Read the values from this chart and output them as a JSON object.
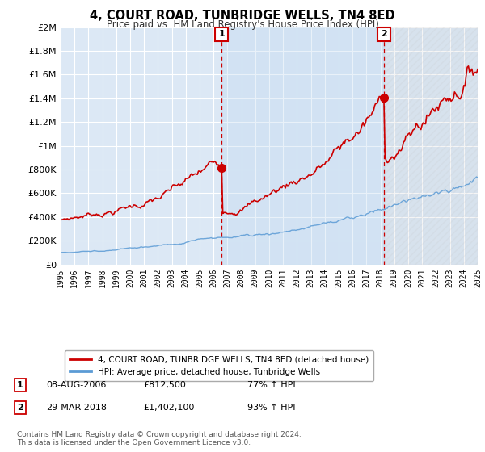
{
  "title": "4, COURT ROAD, TUNBRIDGE WELLS, TN4 8ED",
  "subtitle": "Price paid vs. HM Land Registry's House Price Index (HPI)",
  "legend_line1": "4, COURT ROAD, TUNBRIDGE WELLS, TN4 8ED (detached house)",
  "legend_line2": "HPI: Average price, detached house, Tunbridge Wells",
  "annotation1_label": "1",
  "annotation1_date": "08-AUG-2006",
  "annotation1_price": "£812,500",
  "annotation1_hpi": "77% ↑ HPI",
  "annotation1_year": 2006.58,
  "annotation1_value": 812500,
  "annotation2_label": "2",
  "annotation2_date": "29-MAR-2018",
  "annotation2_price": "£1,402,100",
  "annotation2_hpi": "93% ↑ HPI",
  "annotation2_year": 2018.25,
  "annotation2_value": 1402100,
  "footer": "Contains HM Land Registry data © Crown copyright and database right 2024.\nThis data is licensed under the Open Government Licence v3.0.",
  "hpi_color": "#5b9bd5",
  "price_color": "#cc0000",
  "fill_color": "#dce8f5",
  "plot_bg_color": "#dce8f5",
  "ylim": [
    0,
    2000000
  ],
  "yticks": [
    0,
    200000,
    400000,
    600000,
    800000,
    1000000,
    1200000,
    1400000,
    1600000,
    1800000,
    2000000
  ],
  "xmin": 1995,
  "xmax": 2025
}
